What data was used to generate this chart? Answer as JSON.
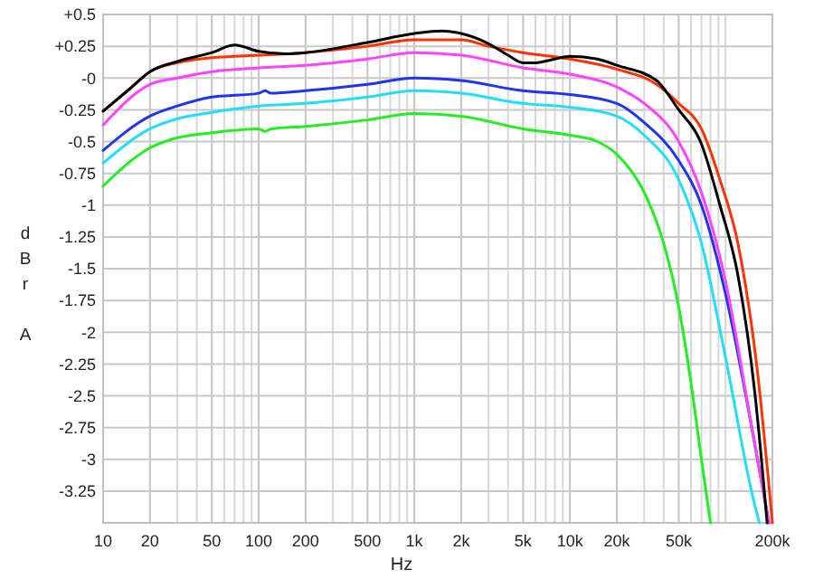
{
  "chart_data": {
    "type": "line",
    "xlabel": "Hz",
    "ylabel": "dBr A",
    "log": "x",
    "grid": true,
    "line_style": "solid",
    "marker": "none",
    "xlim": [
      10,
      200000
    ],
    "ylim": [
      -3.5,
      0.5
    ],
    "xticks": [
      10,
      20,
      {
        "value": 30,
        "label": null
      },
      {
        "value": 40,
        "label": null
      },
      50,
      {
        "value": 60,
        "label": null
      },
      {
        "value": 70,
        "label": null
      },
      {
        "value": 80,
        "label": null
      },
      {
        "value": 90,
        "label": null
      },
      100,
      200,
      {
        "value": 300,
        "label": null
      },
      {
        "value": 400,
        "label": null
      },
      500,
      {
        "value": 600,
        "label": null
      },
      {
        "value": 700,
        "label": null
      },
      {
        "value": 800,
        "label": null
      },
      {
        "value": 900,
        "label": null
      },
      {
        "value": 1000,
        "label": "1k"
      },
      {
        "value": 2000,
        "label": "2k"
      },
      {
        "value": 3000,
        "label": null
      },
      {
        "value": 4000,
        "label": null
      },
      {
        "value": 5000,
        "label": "5k"
      },
      {
        "value": 6000,
        "label": null
      },
      {
        "value": 7000,
        "label": null
      },
      {
        "value": 8000,
        "label": null
      },
      {
        "value": 9000,
        "label": null
      },
      {
        "value": 10000,
        "label": "10k"
      },
      {
        "value": 20000,
        "label": "20k"
      },
      {
        "value": 30000,
        "label": null
      },
      {
        "value": 40000,
        "label": null
      },
      {
        "value": 50000,
        "label": "50k"
      },
      {
        "value": 60000,
        "label": null
      },
      {
        "value": 70000,
        "label": null
      },
      {
        "value": 80000,
        "label": null
      },
      {
        "value": 90000,
        "label": null
      },
      {
        "value": 100000,
        "label": null
      },
      {
        "value": 200000,
        "label": "200k"
      }
    ],
    "yticks": [
      {
        "value": 0.5,
        "label": "+0.5"
      },
      {
        "value": 0.25,
        "label": "+0.25"
      },
      {
        "value": 0,
        "label": "-0"
      },
      -0.25,
      -0.5,
      -0.75,
      -1,
      -1.25,
      -1.5,
      -1.75,
      -2,
      -2.25,
      -2.5,
      -2.75,
      -3,
      -3.25,
      {
        "value": -3.5,
        "label": null
      }
    ],
    "series": [
      {
        "color": "#22ee22",
        "x": [
          10,
          20,
          30,
          50,
          100,
          110,
          120,
          200,
          500,
          1000,
          2000,
          5000,
          10000,
          15000,
          20000,
          30000,
          40000,
          50000,
          60000,
          70000,
          80000
        ],
        "values": [
          -0.85,
          -0.55,
          -0.47,
          -0.43,
          -0.4,
          -0.42,
          -0.4,
          -0.38,
          -0.33,
          -0.28,
          -0.3,
          -0.4,
          -0.45,
          -0.5,
          -0.6,
          -0.9,
          -1.3,
          -1.8,
          -2.4,
          -3.0,
          -3.5
        ]
      },
      {
        "color": "#22ddff",
        "x": [
          10,
          20,
          30,
          50,
          100,
          200,
          500,
          1000,
          2000,
          5000,
          10000,
          20000,
          30000,
          50000,
          70000,
          100000,
          150000,
          165000
        ],
        "values": [
          -0.67,
          -0.4,
          -0.32,
          -0.27,
          -0.22,
          -0.2,
          -0.15,
          -0.1,
          -0.12,
          -0.2,
          -0.23,
          -0.3,
          -0.45,
          -0.8,
          -1.3,
          -2.2,
          -3.3,
          -3.5
        ]
      },
      {
        "color": "#2233ee",
        "x": [
          10,
          20,
          30,
          50,
          100,
          110,
          120,
          200,
          500,
          1000,
          2000,
          5000,
          10000,
          20000,
          30000,
          50000,
          70000,
          100000,
          150000,
          190000
        ],
        "values": [
          -0.57,
          -0.3,
          -0.22,
          -0.15,
          -0.12,
          -0.1,
          -0.12,
          -0.1,
          -0.05,
          0.0,
          -0.02,
          -0.1,
          -0.13,
          -0.2,
          -0.35,
          -0.65,
          -1.0,
          -1.7,
          -2.8,
          -3.5
        ]
      },
      {
        "color": "#ff44ff",
        "x": [
          10,
          20,
          30,
          50,
          100,
          200,
          500,
          1000,
          2000,
          5000,
          10000,
          20000,
          30000,
          50000,
          70000,
          100000,
          150000,
          190000
        ],
        "values": [
          -0.37,
          -0.05,
          0.0,
          0.05,
          0.08,
          0.1,
          0.15,
          0.2,
          0.18,
          0.08,
          0.03,
          -0.07,
          -0.2,
          -0.5,
          -0.9,
          -1.6,
          -2.8,
          -3.5
        ]
      },
      {
        "color": "#ff3300",
        "x": [
          10,
          15,
          20,
          30,
          50,
          70,
          100,
          200,
          500,
          1000,
          2000,
          3000,
          5000,
          10000,
          20000,
          36000,
          50000,
          70000,
          92000,
          120000,
          160000,
          200000
        ],
        "values": [
          -0.26,
          -0.08,
          0.05,
          0.12,
          0.16,
          0.17,
          0.18,
          0.2,
          0.25,
          0.3,
          0.3,
          0.25,
          0.2,
          0.15,
          0.07,
          -0.05,
          -0.2,
          -0.4,
          -0.8,
          -1.3,
          -2.3,
          -3.5
        ]
      },
      {
        "color": "#000000",
        "x": [
          10,
          15,
          20,
          30,
          50,
          70,
          100,
          150,
          200,
          500,
          1000,
          1500,
          2000,
          3000,
          4000,
          5000,
          6000,
          8000,
          10000,
          15000,
          20000,
          36000,
          50000,
          69000,
          92000,
          120000,
          155000,
          185000
        ],
        "values": [
          -0.26,
          -0.08,
          0.05,
          0.13,
          0.2,
          0.26,
          0.21,
          0.19,
          0.2,
          0.28,
          0.35,
          0.37,
          0.35,
          0.27,
          0.18,
          0.12,
          0.12,
          0.15,
          0.17,
          0.15,
          0.1,
          -0.02,
          -0.25,
          -0.5,
          -1.0,
          -1.55,
          -2.5,
          -3.5
        ]
      }
    ]
  }
}
